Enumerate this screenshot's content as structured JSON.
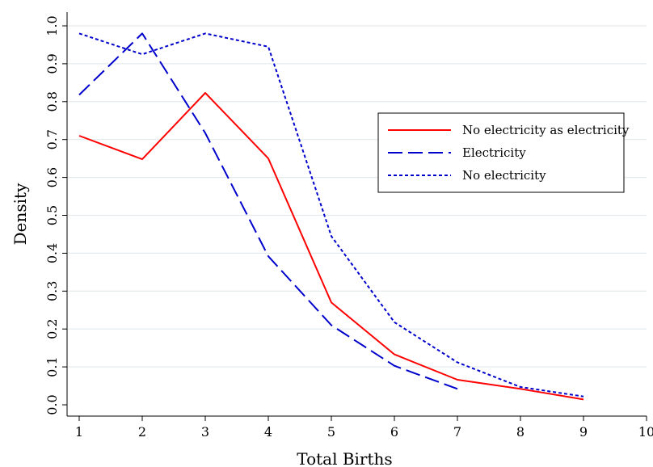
{
  "chart_data": {
    "type": "line",
    "title": "",
    "xlabel": "Total Births",
    "ylabel": "Density",
    "xlim": [
      1,
      10
    ],
    "ylim": [
      0,
      1
    ],
    "x_ticks": [
      1,
      2,
      3,
      4,
      5,
      6,
      7,
      8,
      9,
      10
    ],
    "y_ticks": [
      "0.0",
      "0.1",
      "0.2",
      "0.3",
      "0.4",
      "0.5",
      "0.6",
      "0.7",
      "0.8",
      "0.9",
      "1.0"
    ],
    "grid": "horizontal",
    "legend_position": "right",
    "series": [
      {
        "name": "No electricity as electricity",
        "color": "#ff0000",
        "style": "solid",
        "x": [
          1,
          2,
          3,
          4,
          5,
          6,
          7,
          8,
          9
        ],
        "y": [
          0.71,
          0.648,
          0.823,
          0.65,
          0.27,
          0.133,
          0.066,
          0.042,
          0.014
        ]
      },
      {
        "name": "Electricity",
        "color": "#0000cc",
        "style": "dashed",
        "x": [
          1,
          2,
          3,
          4,
          5,
          6,
          7
        ],
        "y": [
          0.818,
          0.98,
          0.717,
          0.392,
          0.21,
          0.103,
          0.042
        ]
      },
      {
        "name": "No electricity",
        "color": "#0000cc",
        "style": "dotted",
        "x": [
          1,
          2,
          3,
          4,
          5,
          6,
          7,
          8,
          9
        ],
        "y": [
          0.98,
          0.925,
          0.98,
          0.945,
          0.445,
          0.218,
          0.112,
          0.047,
          0.022
        ]
      }
    ]
  }
}
